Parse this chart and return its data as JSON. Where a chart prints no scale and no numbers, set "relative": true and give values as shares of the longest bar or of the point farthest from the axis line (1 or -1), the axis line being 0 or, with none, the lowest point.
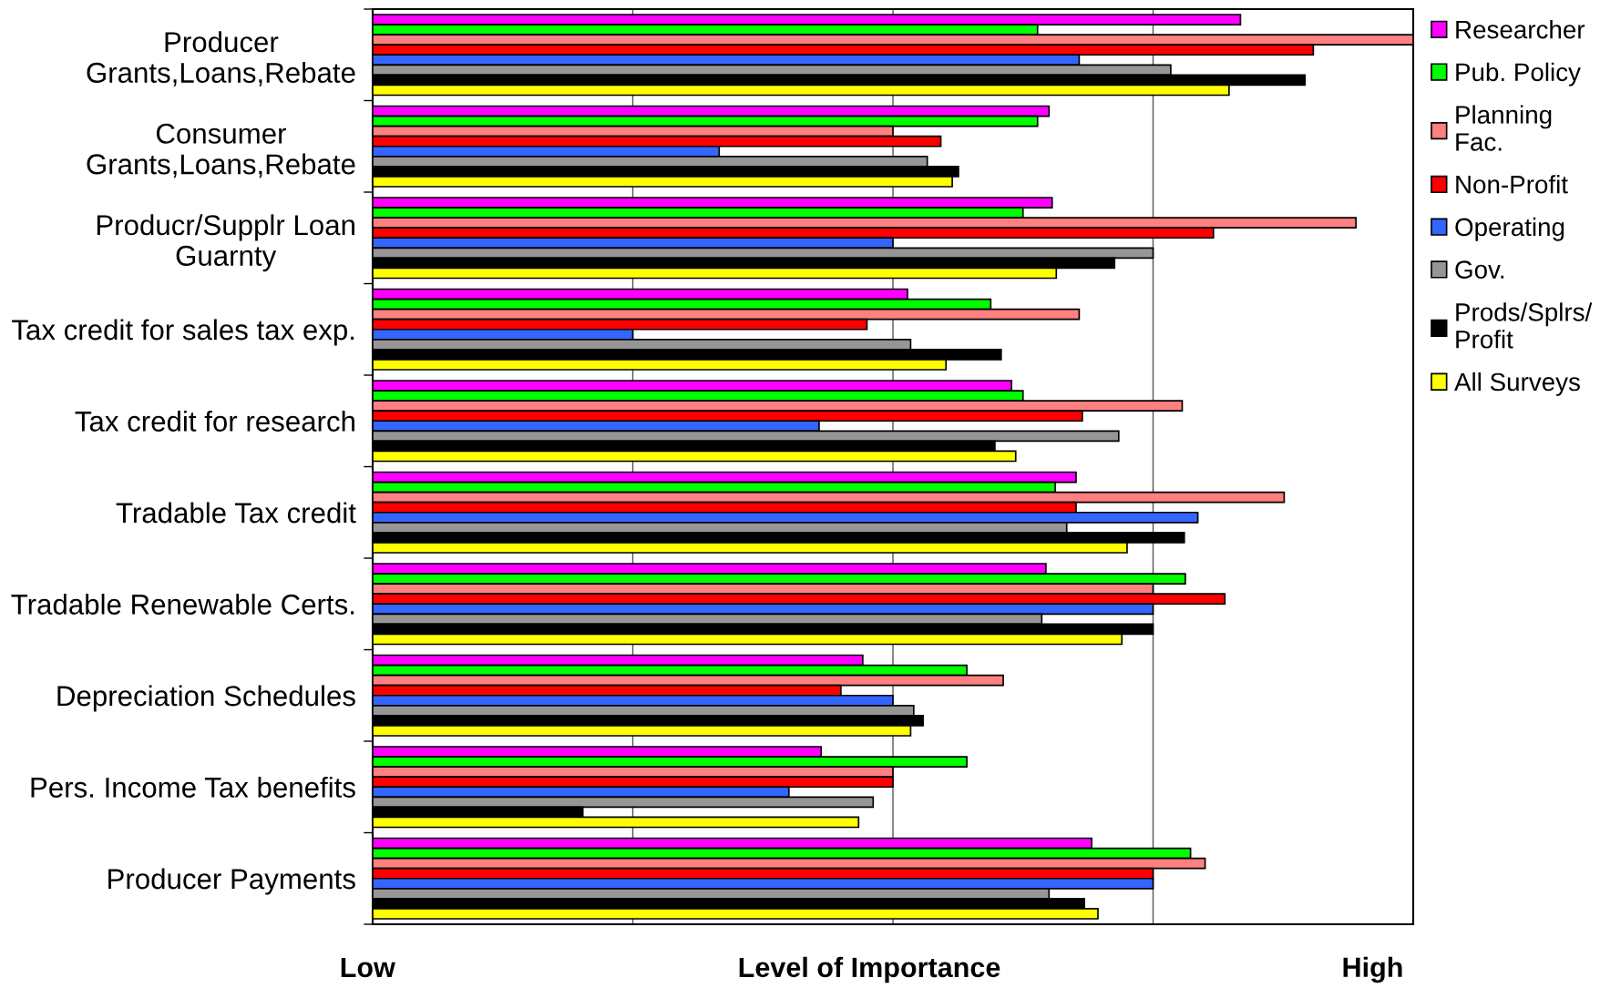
{
  "chart_data": {
    "type": "bar",
    "orientation": "horizontal",
    "relative": true,
    "categories": [
      "Producer Grants,Loans,Rebate",
      "Consumer Grants,Loans,Rebate",
      "Producr/Supplr Loan Guarnty",
      "Tax credit for sales tax exp.",
      "Tax credit for research",
      "Tradable Tax credit",
      "Tradable Renewable Certs.",
      "Depreciation Schedules",
      "Pers. Income Tax benefits",
      "Producer Payments"
    ],
    "series": [
      {
        "name": "Researcher",
        "color": "#ff00ff",
        "values": [
          0.834,
          0.65,
          0.653,
          0.514,
          0.614,
          0.676,
          0.647,
          0.471,
          0.431,
          0.691
        ]
      },
      {
        "name": "Pub. Policy",
        "color": "#00ff00",
        "values": [
          0.639,
          0.639,
          0.625,
          0.594,
          0.625,
          0.656,
          0.781,
          0.571,
          0.571,
          0.786
        ]
      },
      {
        "name": "Planning Fac.",
        "color": "#ff8080",
        "values": [
          1,
          0.5,
          0.945,
          0.679,
          0.778,
          0.876,
          0.75,
          0.606,
          0.5,
          0.8
        ]
      },
      {
        "name": "Non-Profit",
        "color": "#ff0000",
        "values": [
          0.904,
          0.546,
          0.808,
          0.475,
          0.682,
          0.676,
          0.819,
          0.45,
          0.5,
          0.75
        ]
      },
      {
        "name": "Operating",
        "color": "#3366ff",
        "values": [
          0.679,
          0.333,
          0.5,
          0.25,
          0.429,
          0.793,
          0.75,
          0.5,
          0.4,
          0.75
        ]
      },
      {
        "name": "Gov.",
        "color": "#969696",
        "values": [
          0.767,
          0.533,
          0.75,
          0.517,
          0.717,
          0.667,
          0.643,
          0.52,
          0.481,
          0.65
        ]
      },
      {
        "name": "Prods/Splrs/Profit",
        "color": "#000000",
        "values": [
          0.896,
          0.563,
          0.713,
          0.604,
          0.598,
          0.78,
          0.75,
          0.529,
          0.202,
          0.684
        ]
      },
      {
        "name": "All Surveys",
        "color": "#ffff00",
        "values": [
          0.823,
          0.557,
          0.657,
          0.551,
          0.618,
          0.725,
          0.72,
          0.517,
          0.467,
          0.697
        ]
      }
    ],
    "xlabel": "Level of Importance",
    "annotations": [
      "Low",
      "High"
    ],
    "grid": "x",
    "legend": "right"
  }
}
